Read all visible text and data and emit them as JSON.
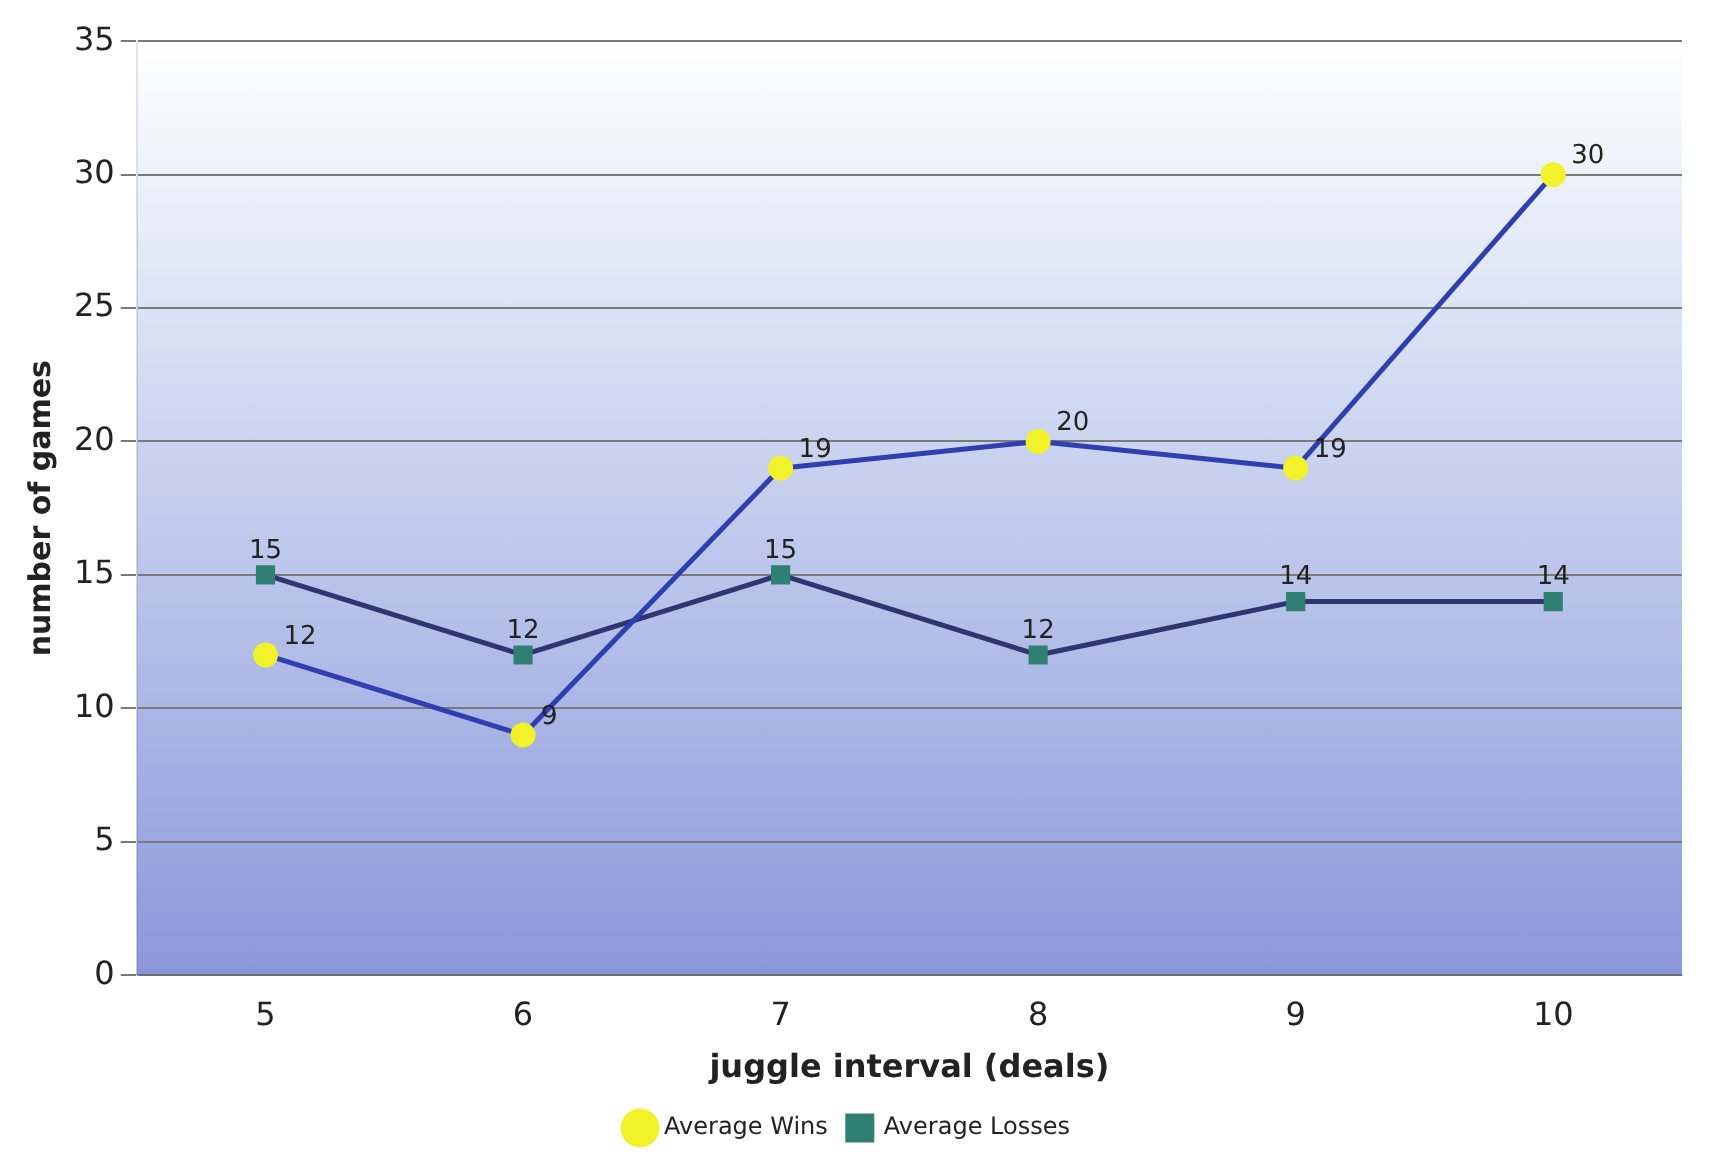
{
  "chart_data": {
    "type": "line",
    "xlabel": "juggle interval (deals)",
    "ylabel": "number of games",
    "categories": [
      "5",
      "6",
      "7",
      "8",
      "9",
      "10"
    ],
    "series": [
      {
        "name": "Average Wins",
        "color": "#2f3fb0",
        "marker": "circle",
        "colors": [
          "#f2f22a",
          "#f2f22a",
          "#f2f22a",
          "#f2f22a",
          "#f2f22a",
          "#f2f22a"
        ],
        "values": [
          12,
          9,
          19,
          20,
          19,
          30
        ]
      },
      {
        "name": "Average Losses",
        "color": "#2e3570",
        "marker": "square",
        "colors": [
          "#2f7f72",
          "#2f7f72",
          "#2f7f72",
          "#2f7f72",
          "#2f7f72",
          "#2f7f72"
        ],
        "values": [
          15,
          12,
          15,
          12,
          14,
          14
        ]
      }
    ],
    "ylim": [
      0,
      35
    ],
    "yticks": [
      0,
      5,
      10,
      15,
      20,
      25,
      30,
      35
    ],
    "grid": "y",
    "legend": "bottom",
    "data_labels": true
  }
}
